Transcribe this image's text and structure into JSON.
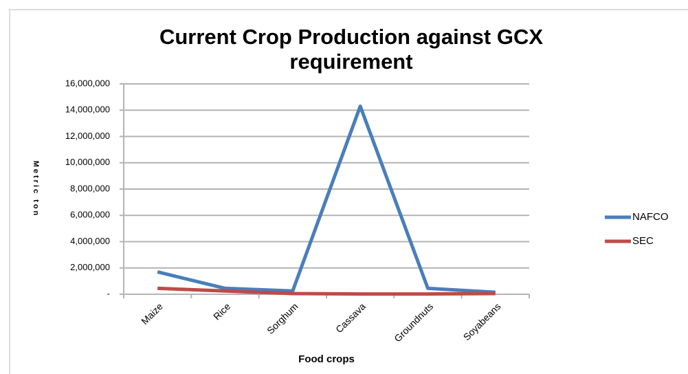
{
  "chart_data": {
    "type": "line",
    "title": "Current Crop Production against GCX requirement",
    "x_label": "Food crops",
    "y_label": "Metric ton",
    "categories": [
      "Maize",
      "Rice",
      "Sorghum",
      "Cassava",
      "Groundnuts",
      "Soyabeans"
    ],
    "series": [
      {
        "name": "NAFCO",
        "color": "#4a7ebb",
        "values": [
          1700000,
          450000,
          250000,
          14300000,
          450000,
          150000
        ]
      },
      {
        "name": "SEC",
        "color": "#be4b48",
        "values": [
          450000,
          250000,
          50000,
          20000,
          20000,
          50000
        ]
      }
    ],
    "ylim": [
      0,
      16000000
    ],
    "yticks": [
      {
        "value": 0,
        "label": "-"
      },
      {
        "value": 2000000,
        "label": "2,000,000"
      },
      {
        "value": 4000000,
        "label": "4,000,000"
      },
      {
        "value": 6000000,
        "label": "6,000,000"
      },
      {
        "value": 8000000,
        "label": "8,000,000"
      },
      {
        "value": 10000000,
        "label": "10,000,000"
      },
      {
        "value": 12000000,
        "label": "12,000,000"
      },
      {
        "value": 14000000,
        "label": "14,000,000"
      },
      {
        "value": 16000000,
        "label": "16,000,000"
      }
    ],
    "grid": true,
    "legend": "right"
  }
}
